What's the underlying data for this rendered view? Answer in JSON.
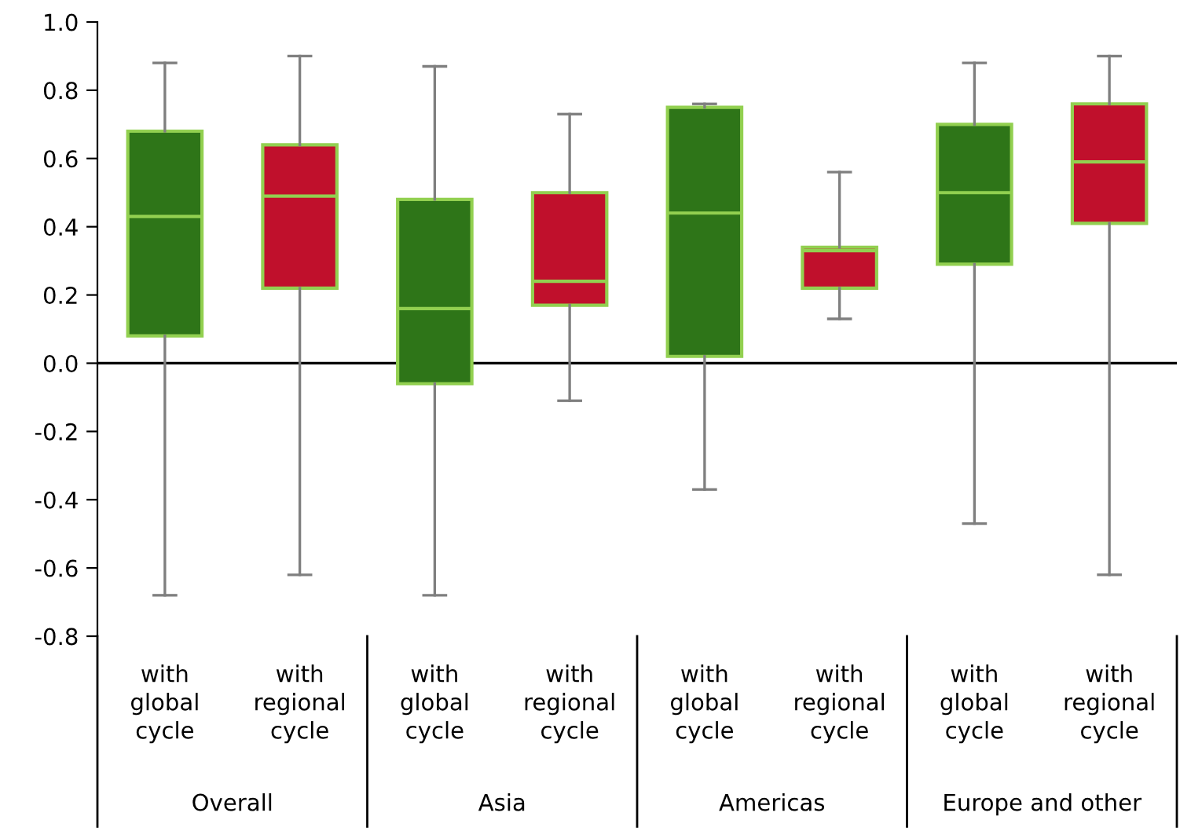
{
  "chart_data": {
    "type": "box",
    "categories": [
      "with\nglobal\ncycle",
      "with\nregional\ncycle",
      "with\nglobal\ncycle",
      "with\nregional\ncycle",
      "with\nglobal\ncycle",
      "with\nregional\ncycle",
      "with\nglobal\ncycle",
      "with\nregional\ncycle"
    ],
    "colors": [
      "#2e7518",
      "#c0102c",
      "#2e7518",
      "#c0102c",
      "#2e7518",
      "#c0102c",
      "#2e7518",
      "#c0102c"
    ],
    "boxes": [
      {
        "low": -0.68,
        "q1": 0.08,
        "median": 0.43,
        "q3": 0.68,
        "high": 0.88
      },
      {
        "low": -0.62,
        "q1": 0.22,
        "median": 0.49,
        "q3": 0.64,
        "high": 0.9
      },
      {
        "low": -0.68,
        "q1": -0.06,
        "median": 0.16,
        "q3": 0.48,
        "high": 0.87
      },
      {
        "low": -0.11,
        "q1": 0.17,
        "median": 0.24,
        "q3": 0.5,
        "high": 0.73
      },
      {
        "low": -0.37,
        "q1": 0.02,
        "median": 0.44,
        "q3": 0.75,
        "high": 0.76
      },
      {
        "low": 0.13,
        "q1": 0.22,
        "median": 0.33,
        "q3": 0.34,
        "high": 0.56
      },
      {
        "low": -0.47,
        "q1": 0.29,
        "median": 0.5,
        "q3": 0.7,
        "high": 0.88
      },
      {
        "low": -0.62,
        "q1": 0.41,
        "median": 0.59,
        "q3": 0.76,
        "high": 0.9
      }
    ],
    "annotations": [
      "Overall",
      "Asia",
      "Americas",
      "Europe and other"
    ],
    "ylim": [
      -0.8,
      1.0
    ],
    "yticks": [
      -0.8,
      -0.6,
      -0.4,
      -0.2,
      {
        "value": 0,
        "label": "0.0"
      },
      0.2,
      0.4,
      0.6,
      0.8,
      {
        "value": 1,
        "label": "1.0"
      }
    ],
    "ref_lines": [
      {
        "axis": "y",
        "value": 0,
        "color": "#000000"
      }
    ],
    "grid": false
  }
}
